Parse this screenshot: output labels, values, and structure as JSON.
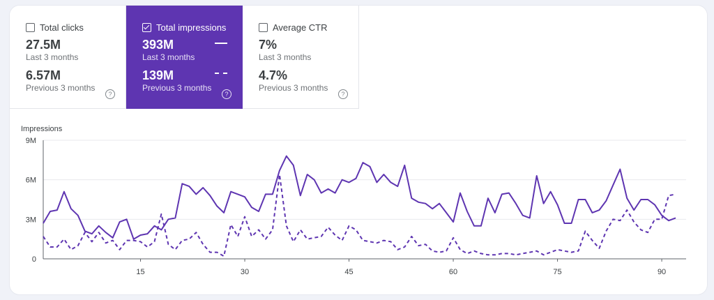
{
  "metrics": [
    {
      "title": "Total clicks",
      "checked": false,
      "value": "27.5M",
      "period": "Last 3 months",
      "prev_value": "6.57M",
      "prev_period": "Previous 3 months"
    },
    {
      "title": "Total impressions",
      "checked": true,
      "value": "393M",
      "period": "Last 3 months",
      "prev_value": "139M",
      "prev_period": "Previous 3 months"
    },
    {
      "title": "Average CTR",
      "checked": false,
      "value": "7%",
      "period": "Last 3 months",
      "prev_value": "4.7%",
      "prev_period": "Previous 3 months"
    }
  ],
  "help_glyph": "?",
  "colors": {
    "accent": "#5e35b1",
    "line": "#5e35b1",
    "grid": "#e8eaed",
    "axis": "#5f6368"
  },
  "chart_data": {
    "type": "line",
    "ylabel": "Impressions",
    "ylim": [
      0,
      9
    ],
    "yticks": [
      0,
      3,
      6,
      9
    ],
    "ytick_labels": [
      "0",
      "3M",
      "6M",
      "9M"
    ],
    "xlim": [
      1,
      92
    ],
    "xticks": [
      15,
      30,
      45,
      60,
      75,
      90
    ],
    "grid": true,
    "series": [
      {
        "style": "solid",
        "x_start": 1,
        "values": [
          2.7,
          3.6,
          3.7,
          5.1,
          3.8,
          3.3,
          2.1,
          1.9,
          2.5,
          2.0,
          1.6,
          2.8,
          3.0,
          1.5,
          1.8,
          1.9,
          2.5,
          2.2,
          3.0,
          3.1,
          5.7,
          5.5,
          4.9,
          5.4,
          4.8,
          4.0,
          3.5,
          5.1,
          4.9,
          4.7,
          3.9,
          3.6,
          4.9,
          4.9,
          6.7,
          7.8,
          7.1,
          4.8,
          6.4,
          6.0,
          5.0,
          5.3,
          5.0,
          6.0,
          5.8,
          6.1,
          7.3,
          7.0,
          5.8,
          6.4,
          5.8,
          5.5,
          7.1,
          4.6,
          4.3,
          4.2,
          3.8,
          4.2,
          3.5,
          2.8,
          5.0,
          3.6,
          2.5,
          2.5,
          4.6,
          3.5,
          4.9,
          5.0,
          4.2,
          3.3,
          3.1,
          6.3,
          4.2,
          5.1,
          4.1,
          2.7,
          2.7,
          4.5,
          4.5,
          3.5,
          3.7,
          4.4,
          5.6,
          6.8,
          4.6,
          3.7,
          4.5,
          4.5,
          4.1,
          3.3,
          2.9,
          3.1
        ]
      },
      {
        "style": "dashed",
        "x_start": 1,
        "values": [
          1.7,
          0.9,
          0.9,
          1.5,
          0.7,
          1.0,
          2.0,
          1.3,
          2.0,
          1.2,
          1.4,
          0.7,
          1.4,
          1.4,
          1.3,
          0.9,
          1.3,
          3.4,
          1.1,
          0.7,
          1.4,
          1.5,
          2.0,
          1.1,
          0.5,
          0.5,
          0.2,
          2.6,
          1.7,
          3.2,
          1.7,
          2.2,
          1.5,
          2.2,
          6.4,
          2.5,
          1.3,
          2.2,
          1.5,
          1.6,
          1.7,
          2.4,
          1.8,
          1.4,
          2.5,
          2.2,
          1.4,
          1.3,
          1.2,
          1.4,
          1.3,
          0.7,
          0.9,
          1.7,
          1.0,
          1.1,
          0.6,
          0.5,
          0.6,
          1.6,
          0.7,
          0.4,
          0.6,
          0.4,
          0.3,
          0.3,
          0.4,
          0.4,
          0.3,
          0.4,
          0.5,
          0.6,
          0.3,
          0.5,
          0.7,
          0.6,
          0.5,
          0.6,
          2.1,
          1.4,
          0.8,
          2.1,
          3.0,
          2.9,
          3.7,
          2.8,
          2.2,
          2.0,
          3.0,
          3.0,
          4.8,
          4.9
        ]
      }
    ]
  }
}
